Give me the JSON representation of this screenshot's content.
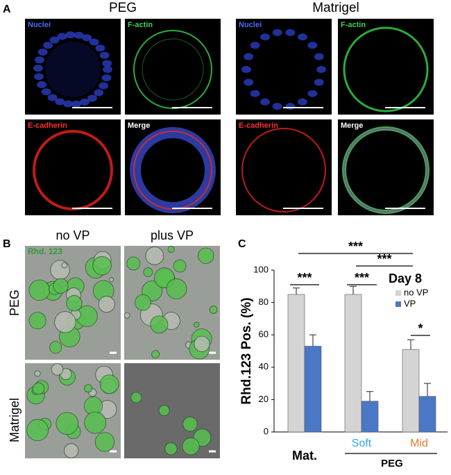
{
  "panel_a": {
    "label": "A",
    "columns": [
      "PEG",
      "Matrigel"
    ],
    "channels": [
      "Nuclei",
      "F-actin",
      "E-cadherin",
      "Merge"
    ]
  },
  "panel_b": {
    "label": "B",
    "columns": [
      "no VP",
      "plus VP"
    ],
    "rows": [
      "PEG",
      "Matrigel"
    ],
    "stain": "Rhd. 123"
  },
  "panel_c": {
    "label": "C"
  },
  "chart_data": {
    "type": "bar",
    "ylabel": "Rhd.123 Pos. (%)",
    "categories": [
      "Mat.",
      "Soft",
      "Mid"
    ],
    "category_colors": [
      "#000000",
      "#29a8e0",
      "#e07a30"
    ],
    "group_label": "PEG",
    "legend_title": "Day 8",
    "series": [
      {
        "name": "no VP",
        "color": "#d4d4d4",
        "values": [
          85,
          85,
          51
        ],
        "errors": [
          4,
          5,
          6
        ]
      },
      {
        "name": "VP",
        "color": "#4a78c6",
        "values": [
          53,
          19,
          22
        ],
        "errors": [
          7,
          6,
          8
        ]
      }
    ],
    "ylim": [
      0,
      100
    ],
    "yticks": [
      0,
      20,
      40,
      60,
      80,
      100
    ],
    "significance": [
      "***",
      "***",
      "***",
      "***",
      "*"
    ]
  }
}
